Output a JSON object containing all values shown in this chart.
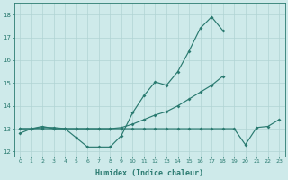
{
  "xlabel": "Humidex (Indice chaleur)",
  "x": [
    0,
    1,
    2,
    3,
    4,
    5,
    6,
    7,
    8,
    9,
    10,
    11,
    12,
    13,
    14,
    15,
    16,
    17,
    18,
    19,
    20,
    21,
    22,
    23
  ],
  "line_peak": [
    12.8,
    13.0,
    13.1,
    13.0,
    13.0,
    12.6,
    12.2,
    12.2,
    12.2,
    12.7,
    13.7,
    14.45,
    15.05,
    14.9,
    15.5,
    16.4,
    17.4,
    17.9,
    17.3,
    null,
    null,
    null,
    null,
    null
  ],
  "line_diag": [
    13.0,
    13.0,
    13.05,
    13.05,
    13.0,
    13.0,
    13.0,
    13.0,
    13.0,
    13.05,
    13.2,
    13.4,
    13.6,
    13.75,
    14.0,
    14.3,
    14.6,
    14.9,
    15.3,
    null,
    null,
    null,
    null,
    null
  ],
  "line_flat": [
    13.0,
    13.0,
    13.0,
    13.0,
    13.0,
    13.0,
    13.0,
    13.0,
    13.0,
    13.0,
    13.0,
    13.0,
    13.0,
    13.0,
    13.0,
    13.0,
    13.0,
    13.0,
    13.0,
    13.0,
    12.3,
    13.05,
    13.1,
    13.4
  ],
  "color": "#2a7a70",
  "bg_color": "#ceeaea",
  "grid_color": "#b0d4d4",
  "ylim": [
    11.8,
    18.5
  ],
  "yticks": [
    12,
    13,
    14,
    15,
    16,
    17,
    18
  ],
  "xticks": [
    0,
    1,
    2,
    3,
    4,
    5,
    6,
    7,
    8,
    9,
    10,
    11,
    12,
    13,
    14,
    15,
    16,
    17,
    18,
    19,
    20,
    21,
    22,
    23
  ]
}
